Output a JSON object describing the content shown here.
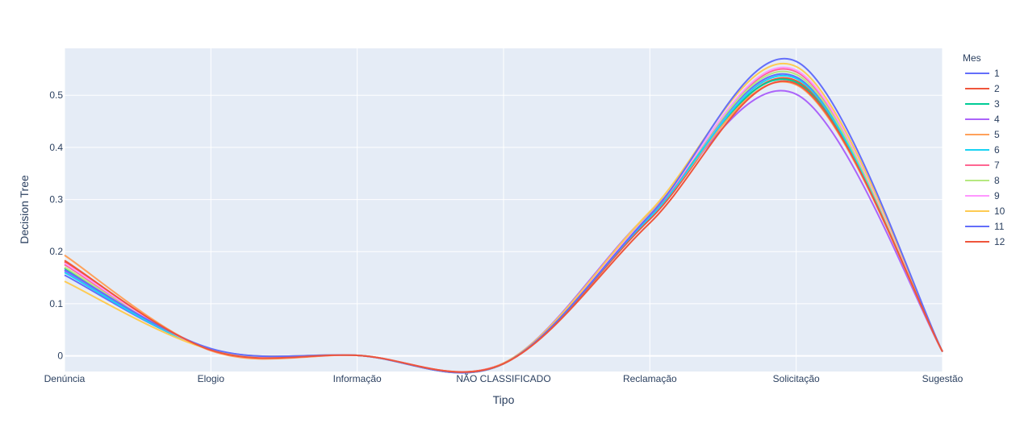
{
  "chart_data": {
    "type": "line",
    "xlabel": "Tipo",
    "ylabel": "Decision Tree",
    "legend_title": "Mes",
    "legend_position": "right",
    "categories": [
      "Denúncia",
      "Elogio",
      "Informação",
      "NÃO CLASSIFICADO",
      "Reclamação",
      "Solicitação",
      "Sugestão"
    ],
    "ylim": [
      -0.03,
      0.59
    ],
    "yticks": [
      0,
      0.1,
      0.2,
      0.3,
      0.4,
      0.5
    ],
    "ytick_labels": [
      "0",
      "0.1",
      "0.2",
      "0.3",
      "0.4",
      "0.5"
    ],
    "grid": true,
    "line_shape": "spline",
    "plot_bgcolor": "#E5ECF6",
    "series": [
      {
        "name": "1",
        "color": "#636efa",
        "values": [
          0.155,
          0.013,
          0.001,
          -0.015,
          0.273,
          0.535,
          0.008
        ]
      },
      {
        "name": "2",
        "color": "#EF553B",
        "values": [
          0.18,
          0.012,
          0.001,
          -0.014,
          0.262,
          0.528,
          0.008
        ]
      },
      {
        "name": "3",
        "color": "#00cc96",
        "values": [
          0.168,
          0.012,
          0.001,
          -0.015,
          0.27,
          0.525,
          0.008
        ]
      },
      {
        "name": "4",
        "color": "#ab63fa",
        "values": [
          0.163,
          0.013,
          0.001,
          -0.014,
          0.275,
          0.502,
          0.008
        ]
      },
      {
        "name": "5",
        "color": "#FFA15A",
        "values": [
          0.193,
          0.01,
          0.001,
          -0.015,
          0.268,
          0.52,
          0.008
        ]
      },
      {
        "name": "6",
        "color": "#19d3f3",
        "values": [
          0.16,
          0.012,
          0.001,
          -0.015,
          0.266,
          0.532,
          0.008
        ]
      },
      {
        "name": "7",
        "color": "#FF6692",
        "values": [
          0.175,
          0.012,
          0.001,
          -0.014,
          0.27,
          0.545,
          0.008
        ]
      },
      {
        "name": "8",
        "color": "#B6E880",
        "values": [
          0.17,
          0.012,
          0.001,
          -0.015,
          0.272,
          0.54,
          0.008
        ]
      },
      {
        "name": "9",
        "color": "#FF97FF",
        "values": [
          0.178,
          0.011,
          0.001,
          -0.014,
          0.271,
          0.548,
          0.008
        ]
      },
      {
        "name": "10",
        "color": "#FECB52",
        "values": [
          0.143,
          0.012,
          0.001,
          -0.014,
          0.277,
          0.555,
          0.008
        ]
      },
      {
        "name": "11",
        "color": "#636efa",
        "values": [
          0.165,
          0.014,
          0.001,
          -0.015,
          0.27,
          0.565,
          0.008
        ]
      },
      {
        "name": "12",
        "color": "#EF553B",
        "values": [
          0.183,
          0.011,
          0.001,
          -0.015,
          0.255,
          0.522,
          0.008
        ]
      }
    ]
  }
}
